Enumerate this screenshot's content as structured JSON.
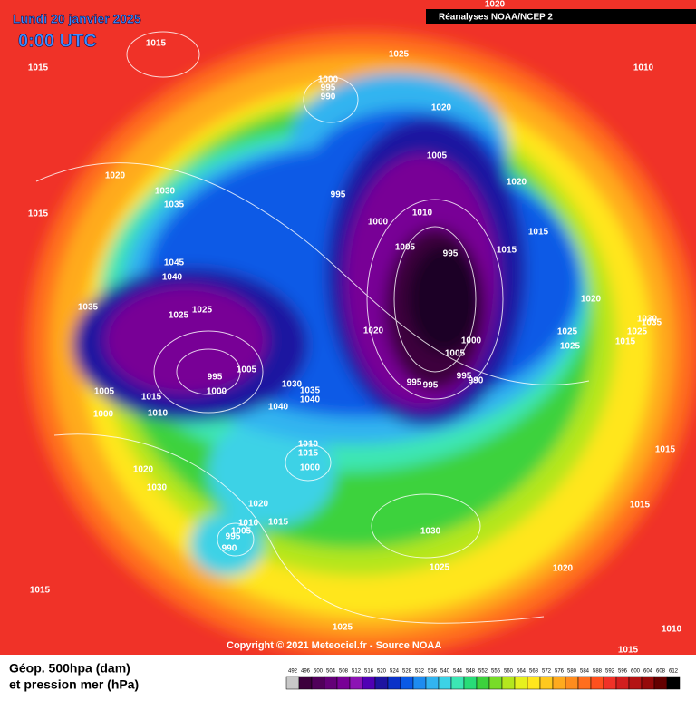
{
  "header": {
    "title": "Lundi 20 janvier 2025",
    "time": "0:00 UTC",
    "source": "Réanalyses NOAA/NCEP 2"
  },
  "map": {
    "pressure_labels": [
      1020,
      1015,
      1015,
      1025,
      1010,
      1000,
      995,
      990,
      1020,
      1020,
      1030,
      1035,
      1015,
      1005,
      1020,
      995,
      1000,
      1010,
      1015,
      1005,
      995,
      1015,
      1045,
      1040,
      1035,
      1025,
      1025,
      1020,
      1020,
      1025,
      1025,
      1015,
      1030,
      1035,
      1025,
      1000,
      1005,
      995,
      1005,
      1000,
      1030,
      1035,
      1040,
      995,
      995,
      995,
      990,
      1005,
      1015,
      1000,
      1010,
      1040,
      1010,
      1015,
      1000,
      1020,
      1030,
      1015,
      1020,
      1010,
      1015,
      1005,
      995,
      990,
      1030,
      1015,
      1025,
      1020,
      1015,
      1025,
      1010,
      1015
    ]
  },
  "footer": {
    "copyright": "Copyright © 2021 Meteociel.fr - Source NOAA",
    "legend_title_line1": "Géop. 500hpa (dam)",
    "legend_title_line2": "et pression mer (hPa)",
    "scale": {
      "values": [
        492,
        496,
        500,
        504,
        508,
        512,
        516,
        520,
        524,
        528,
        532,
        536,
        540,
        544,
        548,
        552,
        556,
        560,
        564,
        568,
        572,
        576,
        580,
        584,
        588,
        592,
        596,
        600,
        604,
        608,
        612
      ],
      "colors": [
        "#c8c8c8",
        "#3c003c",
        "#50005a",
        "#640078",
        "#780096",
        "#8c14b4",
        "#5000b4",
        "#1e14a0",
        "#0a32c8",
        "#0a5ae6",
        "#1e8cf0",
        "#32b4f0",
        "#3cd2e6",
        "#3ce6b4",
        "#28dc78",
        "#3cd23c",
        "#78dc28",
        "#b4e61e",
        "#e6f01e",
        "#ffe61e",
        "#ffc81e",
        "#ffaa1e",
        "#ff8c1e",
        "#ff6e1e",
        "#ff501e",
        "#f03228",
        "#d21e1e",
        "#b41414",
        "#960a0a",
        "#640000",
        "#000000"
      ]
    }
  }
}
